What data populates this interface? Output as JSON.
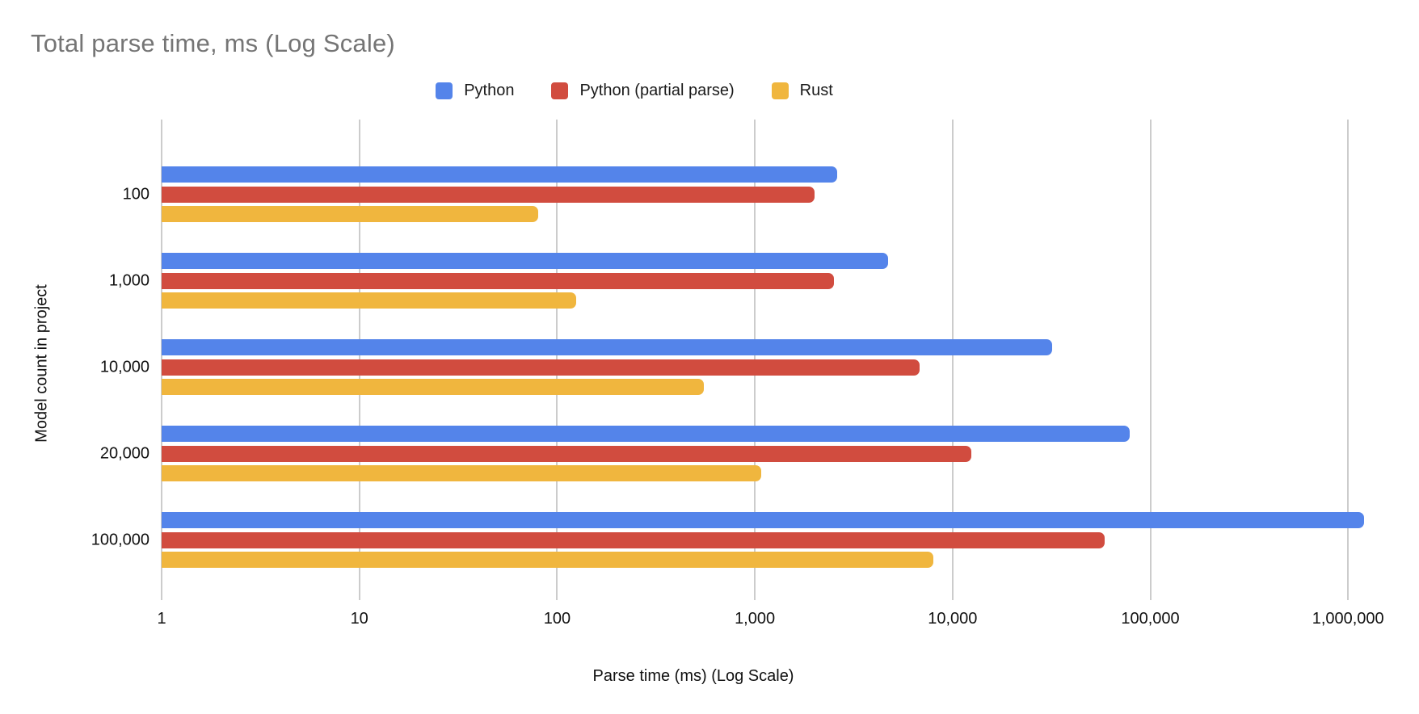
{
  "title": "Total parse time, ms (Log Scale)",
  "legend": {
    "position": "top",
    "items": [
      {
        "label": "Python",
        "color": "#5484EA"
      },
      {
        "label": "Python (partial parse)",
        "color": "#D14C3F"
      },
      {
        "label": "Rust",
        "color": "#F0B63E"
      }
    ]
  },
  "chart_data": {
    "type": "bar",
    "orientation": "horizontal",
    "log_scale_x": true,
    "title": "Total parse time, ms (Log Scale)",
    "xlabel": "Parse time (ms) (Log Scale)",
    "ylabel": "Model count in project",
    "categories": [
      "100",
      "1,000",
      "10,000",
      "20,000",
      "100,000"
    ],
    "series": [
      {
        "name": "Python",
        "color": "#5484EA",
        "values": [
          2600,
          4700,
          32000,
          79000,
          1200000
        ]
      },
      {
        "name": "Python (partial parse)",
        "color": "#D14C3F",
        "values": [
          2000,
          2500,
          6800,
          12400,
          59000
        ]
      },
      {
        "name": "Rust",
        "color": "#F0B63E",
        "values": [
          80,
          125,
          550,
          1080,
          8000
        ]
      }
    ],
    "x_ticks": [
      "1",
      "10",
      "100",
      "1,000",
      "10,000",
      "100,000",
      "1,000,000"
    ],
    "x_tick_values": [
      1,
      10,
      100,
      1000,
      10000,
      100000,
      1000000
    ],
    "xlim": [
      1,
      1000000
    ],
    "grid": true,
    "gridline_color": "#cccccc"
  }
}
